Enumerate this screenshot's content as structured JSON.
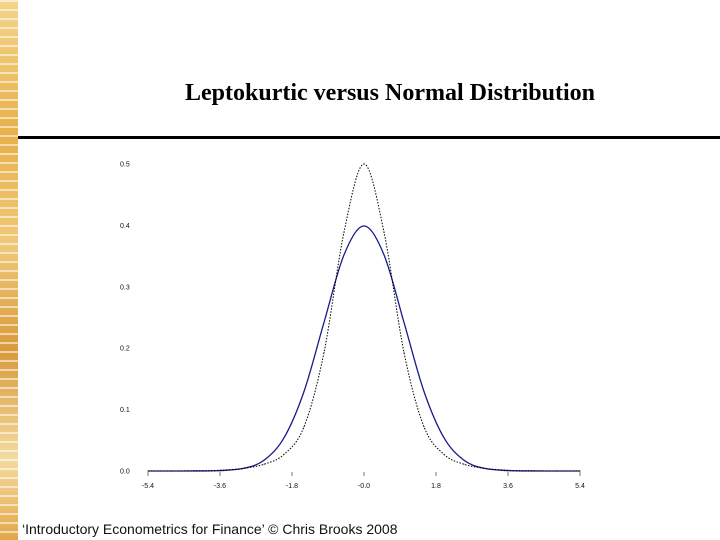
{
  "slide": {
    "title": "Leptokurtic versus Normal Distribution",
    "footer": "‘Introductory Econometrics for Finance’ © Chris Brooks 2008"
  },
  "colors": {
    "normal_line": "#1a1a8c",
    "leptokurtic_line": "#000000",
    "rule": "#000000",
    "accent_strip": "#e7b04a"
  },
  "chart_data": {
    "type": "line",
    "title": "",
    "xlabel": "",
    "ylabel": "",
    "xlim": [
      -5.4,
      5.4
    ],
    "ylim": [
      0.0,
      0.5
    ],
    "xticks": [
      "-5.4",
      "-3.6",
      "-1.8",
      "-0.0",
      "1.8",
      "3.6",
      "5.4"
    ],
    "yticks": [
      "0.5",
      "0.4",
      "0.3",
      "0.2",
      "0.1",
      "0.0"
    ],
    "grid": false,
    "series": [
      {
        "style": "solid",
        "color": "#1a1a8c",
        "x": [
          -5.4,
          -4.8,
          -4.2,
          -3.6,
          -3.0,
          -2.5,
          -2.0,
          -1.5,
          -1.0,
          -0.5,
          0.0,
          0.5,
          1.0,
          1.5,
          2.0,
          2.5,
          3.0,
          3.6,
          4.2,
          4.8,
          5.4
        ],
        "y": [
          0.0,
          0.0,
          0.0001,
          0.0006,
          0.0044,
          0.0175,
          0.054,
          0.1295,
          0.242,
          0.352,
          0.399,
          0.352,
          0.242,
          0.1295,
          0.054,
          0.0175,
          0.0044,
          0.0006,
          0.0001,
          0.0,
          0.0
        ]
      },
      {
        "style": "dotted",
        "color": "#000000",
        "x": [
          -5.4,
          -4.8,
          -4.2,
          -3.6,
          -3.0,
          -2.5,
          -2.0,
          -1.5,
          -1.0,
          -0.5,
          0.0,
          0.5,
          1.0,
          1.5,
          2.0,
          2.5,
          3.0,
          3.6,
          4.2,
          4.8,
          5.4
        ],
        "y": [
          0.0,
          0.0,
          0.0003,
          0.0012,
          0.0045,
          0.011,
          0.027,
          0.072,
          0.193,
          0.389,
          0.5,
          0.389,
          0.193,
          0.072,
          0.027,
          0.011,
          0.0045,
          0.0012,
          0.0003,
          0.0,
          0.0
        ]
      }
    ]
  }
}
